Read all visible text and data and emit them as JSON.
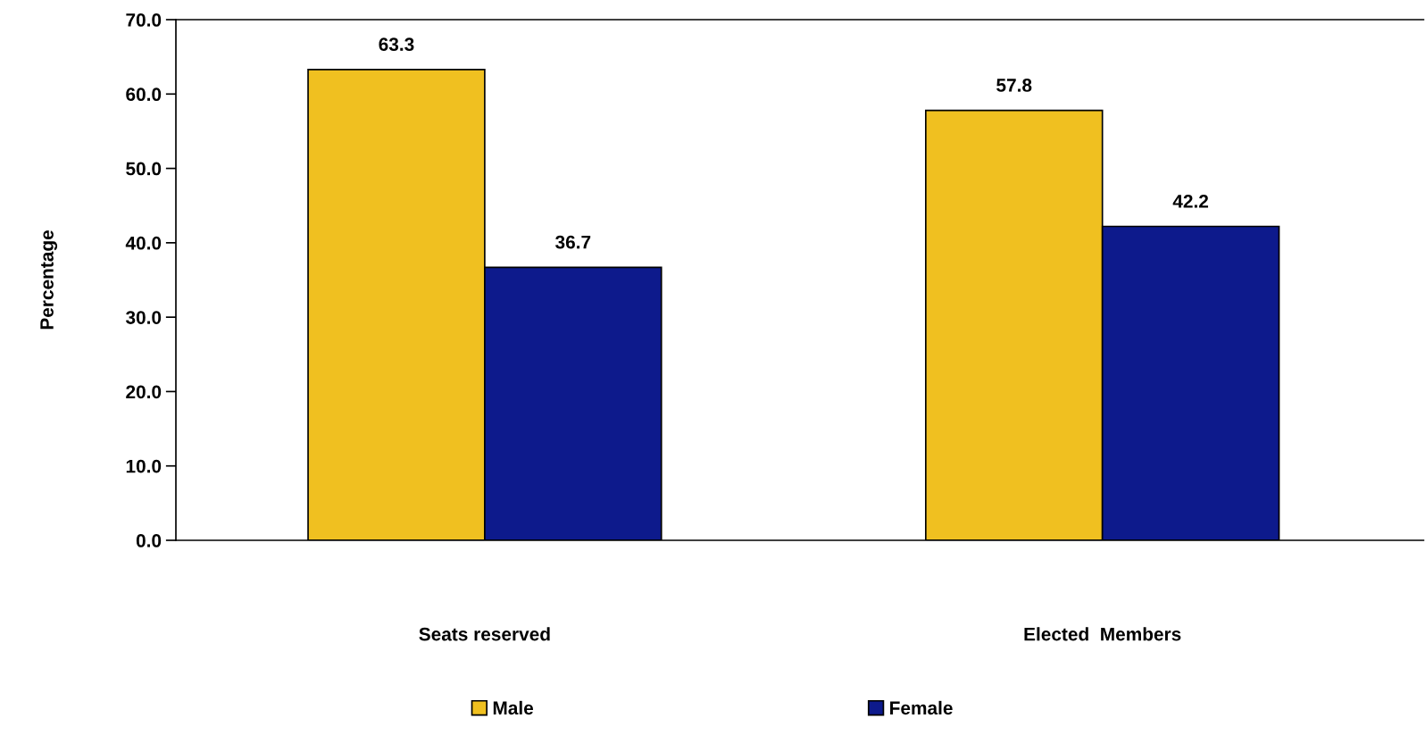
{
  "chart_data": {
    "type": "bar",
    "ylabel": "Percentage",
    "categories": [
      "Seats reserved",
      "Elected  Members"
    ],
    "series": [
      {
        "name": "Male",
        "color": "#f0c020",
        "values": [
          63.3,
          57.8
        ]
      },
      {
        "name": "Female",
        "color": "#0d1a8c",
        "values": [
          36.7,
          42.2
        ]
      }
    ],
    "ylim": [
      0,
      70
    ],
    "yticks": [
      {
        "value": 0,
        "label": "0.0"
      },
      {
        "value": 10,
        "label": "10.0"
      },
      {
        "value": 20,
        "label": "20.0"
      },
      {
        "value": 30,
        "label": "30.0"
      },
      {
        "value": 40,
        "label": "40.0"
      },
      {
        "value": 50,
        "label": "50.0"
      },
      {
        "value": 60,
        "label": "60.0"
      },
      {
        "value": 70,
        "label": "70.0"
      }
    ],
    "data_labels": true,
    "grid": false,
    "legend": "bottom"
  }
}
